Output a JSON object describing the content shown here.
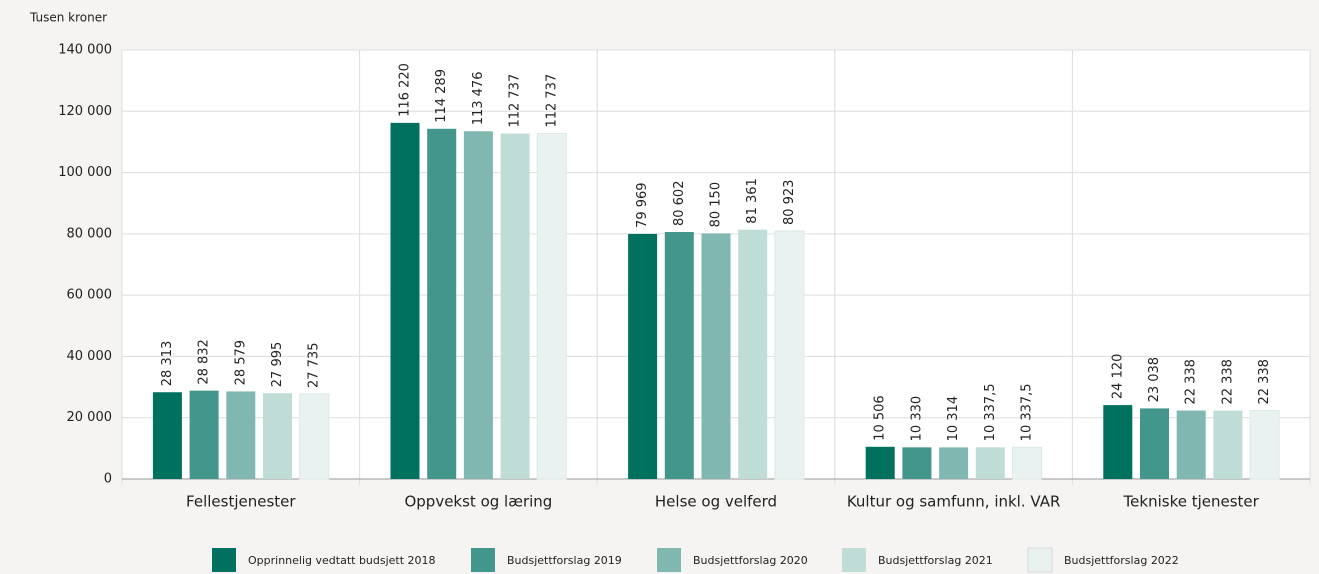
{
  "chart_data": {
    "type": "bar",
    "y_axis_label": "Tusen kroner",
    "categories": [
      "Fellestjenester",
      "Oppvekst og læring",
      "Helse og velferd",
      "Kultur og samfunn, inkl. VAR",
      "Tekniske tjenester"
    ],
    "series": [
      {
        "name": "Opprinnelig vedtatt budsjett 2018",
        "color": "#00705f",
        "values": [
          28313,
          116220,
          79969,
          10506,
          24120
        ],
        "value_labels": [
          "28 313",
          "116 220",
          "79 969",
          "10 506",
          "24 120"
        ]
      },
      {
        "name": "Budsjettforslag 2019",
        "color": "#42968b",
        "values": [
          28832,
          114289,
          80602,
          10330,
          23038
        ],
        "value_labels": [
          "28 832",
          "114 289",
          "80 602",
          "10 330",
          "23 038"
        ]
      },
      {
        "name": "Budsjettforslag 2020",
        "color": "#80b7b0",
        "values": [
          28579,
          113476,
          80150,
          10314,
          22338
        ],
        "value_labels": [
          "28 579",
          "113 476",
          "80 150",
          "10 314",
          "22 338"
        ]
      },
      {
        "name": "Budsjettforslag 2021",
        "color": "#bfdcd7",
        "values": [
          27995,
          112737,
          81361,
          10337.5,
          22338
        ],
        "value_labels": [
          "27 995",
          "112 737",
          "81 361",
          "10 337,5",
          "22 338"
        ]
      },
      {
        "name": "Budsjettforslag 2022",
        "color": "#e9f2f0",
        "values": [
          27735,
          112737,
          80923,
          10337.5,
          22338
        ],
        "value_labels": [
          "27 735",
          "112 737",
          "80 923",
          "10 337,5",
          "22 338"
        ]
      }
    ],
    "ylim": [
      0,
      140000
    ],
    "yticks": [
      0,
      {
        "value": 20000,
        "label": "20 000"
      },
      {
        "value": 40000,
        "label": "40 000"
      },
      {
        "value": 60000,
        "label": "60 000"
      },
      {
        "value": 80000,
        "label": "80 000"
      },
      {
        "value": 100000,
        "label": "100 000"
      },
      {
        "value": 120000,
        "label": "120 000"
      },
      {
        "value": 140000,
        "label": "140 000"
      }
    ],
    "grid": true
  }
}
